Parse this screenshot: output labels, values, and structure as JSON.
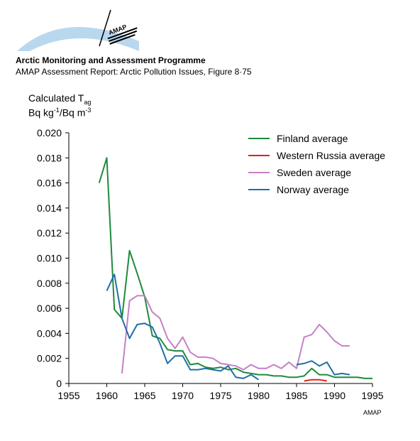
{
  "header": {
    "logo_text": "AMAP",
    "title": "Arctic Monitoring and Assessment Programme",
    "subtitle": "AMAP Assessment Report: Arctic Pollution Issues, Figure 8·75"
  },
  "footer": {
    "credit": "AMAP"
  },
  "colors": {
    "logo_arc": "#b9d8ee",
    "axis": "#000000"
  },
  "chart_data": {
    "type": "line",
    "title": "",
    "ylabel_line1_main": "Calculated T",
    "ylabel_line1_sub": "ag",
    "ylabel_line2_a": "Bq kg",
    "ylabel_line2_sup1": "-1",
    "ylabel_line2_b": "/Bq m",
    "ylabel_line2_sup2": "-3",
    "xlabel": "",
    "xlim": [
      1955,
      1995
    ],
    "ylim": [
      0,
      0.02
    ],
    "x_ticks": [
      1955,
      1960,
      1965,
      1970,
      1975,
      1980,
      1985,
      1990,
      1995
    ],
    "x_tick_labels": [
      "1955",
      "1960",
      "1965",
      "1970",
      "1975",
      "1980",
      "1985",
      "1990",
      "1995"
    ],
    "y_ticks": [
      0,
      0.002,
      0.004,
      0.006,
      0.008,
      0.01,
      0.012,
      0.014,
      0.016,
      0.018,
      0.02
    ],
    "y_tick_labels": [
      "0",
      "0.002",
      "0.004",
      "0.006",
      "0.008",
      "0.010",
      "0.012",
      "0.014",
      "0.016",
      "0.018",
      "0.020"
    ],
    "grid": false,
    "legend_position": "top-right",
    "series": [
      {
        "name": "Finland average",
        "color": "#1e8a3c",
        "segments": [
          [
            [
              1959,
              0.016
            ],
            [
              1960,
              0.018
            ],
            [
              1961,
              0.0059
            ],
            [
              1962,
              0.0052
            ],
            [
              1963,
              0.0106
            ],
            [
              1964,
              0.0088
            ],
            [
              1965,
              0.0069
            ],
            [
              1966,
              0.0038
            ],
            [
              1967,
              0.0036
            ],
            [
              1968,
              0.0027
            ],
            [
              1969,
              0.0026
            ],
            [
              1970,
              0.0026
            ],
            [
              1971,
              0.0015
            ],
            [
              1972,
              0.0016
            ],
            [
              1973,
              0.0013
            ],
            [
              1974,
              0.0012
            ],
            [
              1975,
              0.0013
            ],
            [
              1976,
              0.0011
            ],
            [
              1977,
              0.0012
            ],
            [
              1978,
              0.0009
            ],
            [
              1979,
              0.0008
            ],
            [
              1980,
              0.0007
            ],
            [
              1981,
              0.0007
            ],
            [
              1982,
              0.0006
            ],
            [
              1983,
              0.0006
            ],
            [
              1984,
              0.0005
            ],
            [
              1985,
              0.0005
            ],
            [
              1986,
              0.0006
            ],
            [
              1987,
              0.0012
            ],
            [
              1988,
              0.0007
            ],
            [
              1989,
              0.0007
            ],
            [
              1990,
              0.0005
            ],
            [
              1991,
              0.0005
            ],
            [
              1992,
              0.0005
            ],
            [
              1993,
              0.0005
            ],
            [
              1994,
              0.0004
            ],
            [
              1995,
              0.0004
            ]
          ]
        ]
      },
      {
        "name": "Western Russia average",
        "color": "#e0201a",
        "segments": [
          [
            [
              1986,
              0.0002
            ],
            [
              1987,
              0.0003
            ],
            [
              1988,
              0.0003
            ],
            [
              1989,
              0.0002
            ]
          ]
        ]
      },
      {
        "name": "Sweden average",
        "color": "#c77fc6",
        "segments": [
          [
            [
              1962,
              0.0008
            ],
            [
              1963,
              0.0066
            ],
            [
              1964,
              0.007
            ],
            [
              1965,
              0.007
            ],
            [
              1966,
              0.0057
            ],
            [
              1967,
              0.0052
            ],
            [
              1968,
              0.0036
            ],
            [
              1969,
              0.0028
            ],
            [
              1970,
              0.0037
            ],
            [
              1971,
              0.0025
            ],
            [
              1972,
              0.0021
            ],
            [
              1973,
              0.0021
            ],
            [
              1974,
              0.002
            ],
            [
              1975,
              0.0016
            ],
            [
              1976,
              0.0015
            ],
            [
              1977,
              0.0014
            ],
            [
              1978,
              0.0011
            ],
            [
              1979,
              0.0015
            ],
            [
              1980,
              0.0012
            ],
            [
              1981,
              0.0012
            ],
            [
              1982,
              0.0015
            ],
            [
              1983,
              0.0012
            ],
            [
              1984,
              0.0017
            ],
            [
              1985,
              0.0012
            ],
            [
              1986,
              0.0037
            ],
            [
              1987,
              0.0039
            ],
            [
              1988,
              0.0047
            ],
            [
              1989,
              0.0041
            ],
            [
              1990,
              0.0034
            ],
            [
              1991,
              0.003
            ],
            [
              1992,
              0.003
            ]
          ]
        ]
      },
      {
        "name": "Norway average",
        "color": "#1f6fa8",
        "segments": [
          [
            [
              1960,
              0.0074
            ],
            [
              1961,
              0.0087
            ],
            [
              1962,
              0.0052
            ],
            [
              1963,
              0.0036
            ],
            [
              1964,
              0.0047
            ],
            [
              1965,
              0.0048
            ],
            [
              1966,
              0.0045
            ],
            [
              1967,
              0.0032
            ],
            [
              1968,
              0.0016
            ],
            [
              1969,
              0.0022
            ],
            [
              1970,
              0.0022
            ],
            [
              1971,
              0.0011
            ],
            [
              1972,
              0.0011
            ],
            [
              1973,
              0.0012
            ],
            [
              1974,
              0.0011
            ],
            [
              1975,
              0.001
            ],
            [
              1976,
              0.0014
            ],
            [
              1977,
              0.0005
            ],
            [
              1978,
              0.0004
            ],
            [
              1979,
              0.0007
            ],
            [
              1980,
              0.0003
            ]
          ],
          [
            [
              1985,
              0.0015
            ],
            [
              1986,
              0.0016
            ],
            [
              1987,
              0.0018
            ],
            [
              1988,
              0.0014
            ],
            [
              1989,
              0.0017
            ],
            [
              1990,
              0.0007
            ],
            [
              1991,
              0.0008
            ],
            [
              1992,
              0.0007
            ]
          ]
        ]
      }
    ]
  }
}
